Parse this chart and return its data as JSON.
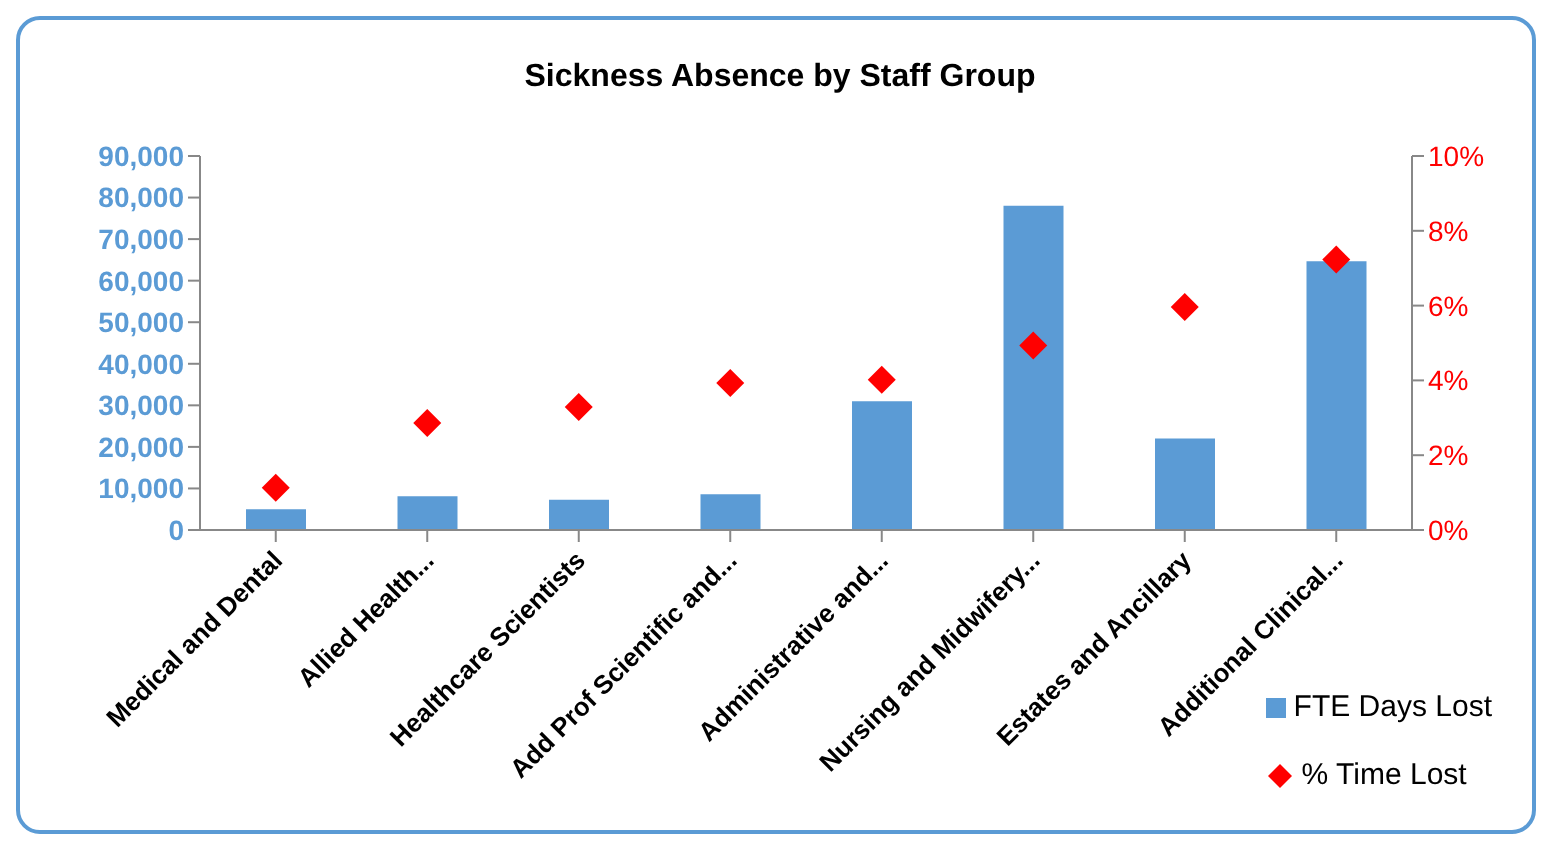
{
  "chart_data": {
    "type": "bar",
    "title": "Sickness Absence by Staff Group",
    "categories": [
      "Medical and Dental",
      "Allied Health...",
      "Healthcare Scientists",
      "Add Prof Scientific and...",
      "Administrative and...",
      "Nursing and Midwifery...",
      "Estates and Ancillary",
      "Additional Clinical..."
    ],
    "series": [
      {
        "name": "FTE Days Lost",
        "color": "#5b9bd5",
        "values": [
          5000,
          8100,
          7300,
          8600,
          31000,
          78000,
          22000,
          64700
        ]
      },
      {
        "name": "% Time Lost",
        "type": "scatter",
        "axis": "y2",
        "color": "#ff0000",
        "marker": "diamond",
        "values": [
          1.13,
          2.86,
          3.29,
          3.93,
          4.02,
          4.93,
          5.96,
          7.23
        ]
      }
    ],
    "ylim": [
      0,
      90000
    ],
    "yticks": [
      {
        "value": 0,
        "label": "0"
      },
      {
        "value": 10000,
        "label": "10,000"
      },
      {
        "value": 20000,
        "label": "20,000"
      },
      {
        "value": 30000,
        "label": "30,000"
      },
      {
        "value": 40000,
        "label": "40,000"
      },
      {
        "value": 50000,
        "label": "50,000"
      },
      {
        "value": 60000,
        "label": "60,000"
      },
      {
        "value": 70000,
        "label": "70,000"
      },
      {
        "value": 80000,
        "label": "80,000"
      },
      {
        "value": 90000,
        "label": "90,000"
      }
    ],
    "y2lim": [
      0,
      10
    ],
    "y2ticks": [
      {
        "value": 0,
        "label": "0%"
      },
      {
        "value": 2,
        "label": "2%"
      },
      {
        "value": 4,
        "label": "4%"
      },
      {
        "value": 6,
        "label": "6%"
      },
      {
        "value": 8,
        "label": "8%"
      },
      {
        "value": 10,
        "label": "10%"
      }
    ],
    "legend": "bottom right"
  }
}
